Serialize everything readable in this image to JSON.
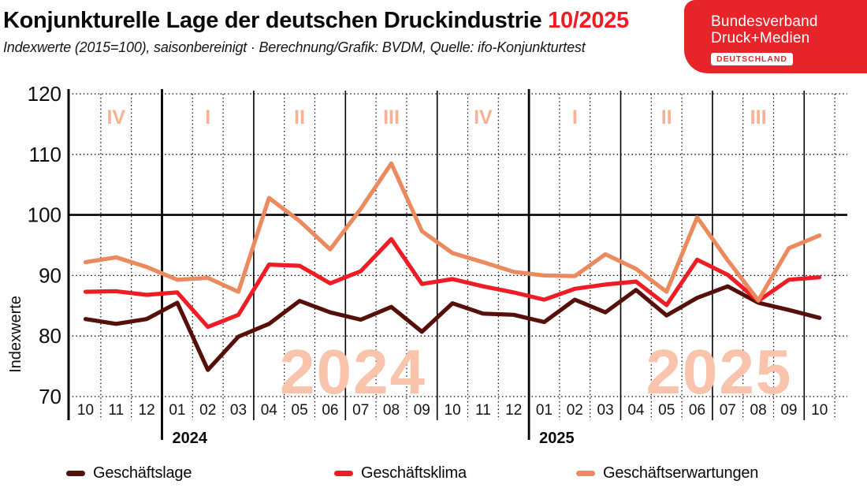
{
  "header": {
    "title": "Konjunkturelle Lage der deutschen Druckindustrie",
    "title_period": "10/2025",
    "subtitle": "Indexwerte (2015=100), saisonbereinigt · Berechnung/Grafik: BVDM, Quelle: ifo-Konjunkturtest"
  },
  "logo": {
    "line1": "Bundesverband",
    "line2": "Druck+Medien",
    "badge": "DEUTSCHLAND",
    "bg_color": "#e8242b",
    "text_color": "#ffffff"
  },
  "colors": {
    "accent_red": "#ee1c25",
    "quarter_label": "#f8b193",
    "year_watermark": "#f9c4ab",
    "grid": "#000000"
  },
  "chart_data": {
    "type": "line",
    "ylabel": "Indexwerte",
    "ylim": [
      70,
      120
    ],
    "yticks": [
      70,
      80,
      90,
      100,
      110,
      120
    ],
    "solid_gridline_at": 100,
    "grid": "dotted horizontal lines at each tick, dotted vertical lines between months, solid vertical lines between quarters, thick solid vertical lines between years",
    "x_months": [
      "10",
      "11",
      "12",
      "01",
      "02",
      "03",
      "04",
      "05",
      "06",
      "07",
      "08",
      "09",
      "10",
      "11",
      "12",
      "01",
      "02",
      "03",
      "04",
      "05",
      "06",
      "07",
      "08",
      "09",
      "10"
    ],
    "years": [
      {
        "label": "2024",
        "boundary_index": 3
      },
      {
        "label": "2025",
        "boundary_index": 15
      }
    ],
    "quarter_labels": [
      {
        "text": "IV",
        "month_index": 1
      },
      {
        "text": "I",
        "month_index": 4
      },
      {
        "text": "II",
        "month_index": 7
      },
      {
        "text": "III",
        "month_index": 10
      },
      {
        "text": "IV",
        "month_index": 13
      },
      {
        "text": "I",
        "month_index": 16
      },
      {
        "text": "II",
        "month_index": 19
      },
      {
        "text": "III",
        "month_index": 22
      }
    ],
    "year_watermarks": [
      {
        "text": "2024",
        "center_month_index": 8.75
      },
      {
        "text": "2025",
        "center_month_index": 20.72
      }
    ],
    "series": [
      {
        "name": "Geschäftslage",
        "color": "#551109",
        "values": [
          82.8,
          82.0,
          82.8,
          85.5,
          74.4,
          79.9,
          82.0,
          85.8,
          83.9,
          82.7,
          84.8,
          80.7,
          85.4,
          83.7,
          83.5,
          82.3,
          86.0,
          83.9,
          87.6,
          83.4,
          86.3,
          88.2,
          85.5,
          84.3,
          83.0
        ]
      },
      {
        "name": "Geschäftsklima",
        "color": "#ee1c25",
        "values": [
          87.3,
          87.4,
          86.8,
          87.2,
          81.5,
          83.5,
          91.8,
          91.6,
          88.7,
          90.7,
          96.0,
          88.6,
          89.4,
          88.2,
          87.2,
          86.0,
          87.8,
          88.5,
          89.0,
          85.1,
          92.6,
          90.1,
          85.8,
          89.3,
          89.7
        ]
      },
      {
        "name": "Geschäftserwartungen",
        "color": "#ea8a5e",
        "values": [
          92.2,
          93.0,
          91.4,
          89.3,
          89.6,
          87.3,
          102.8,
          99.0,
          94.3,
          101.0,
          108.5,
          97.3,
          93.7,
          92.2,
          90.6,
          90.0,
          89.9,
          93.5,
          91.1,
          87.3,
          99.6,
          92.5,
          85.9,
          94.5,
          96.6
        ]
      }
    ],
    "legend_position": "bottom"
  }
}
